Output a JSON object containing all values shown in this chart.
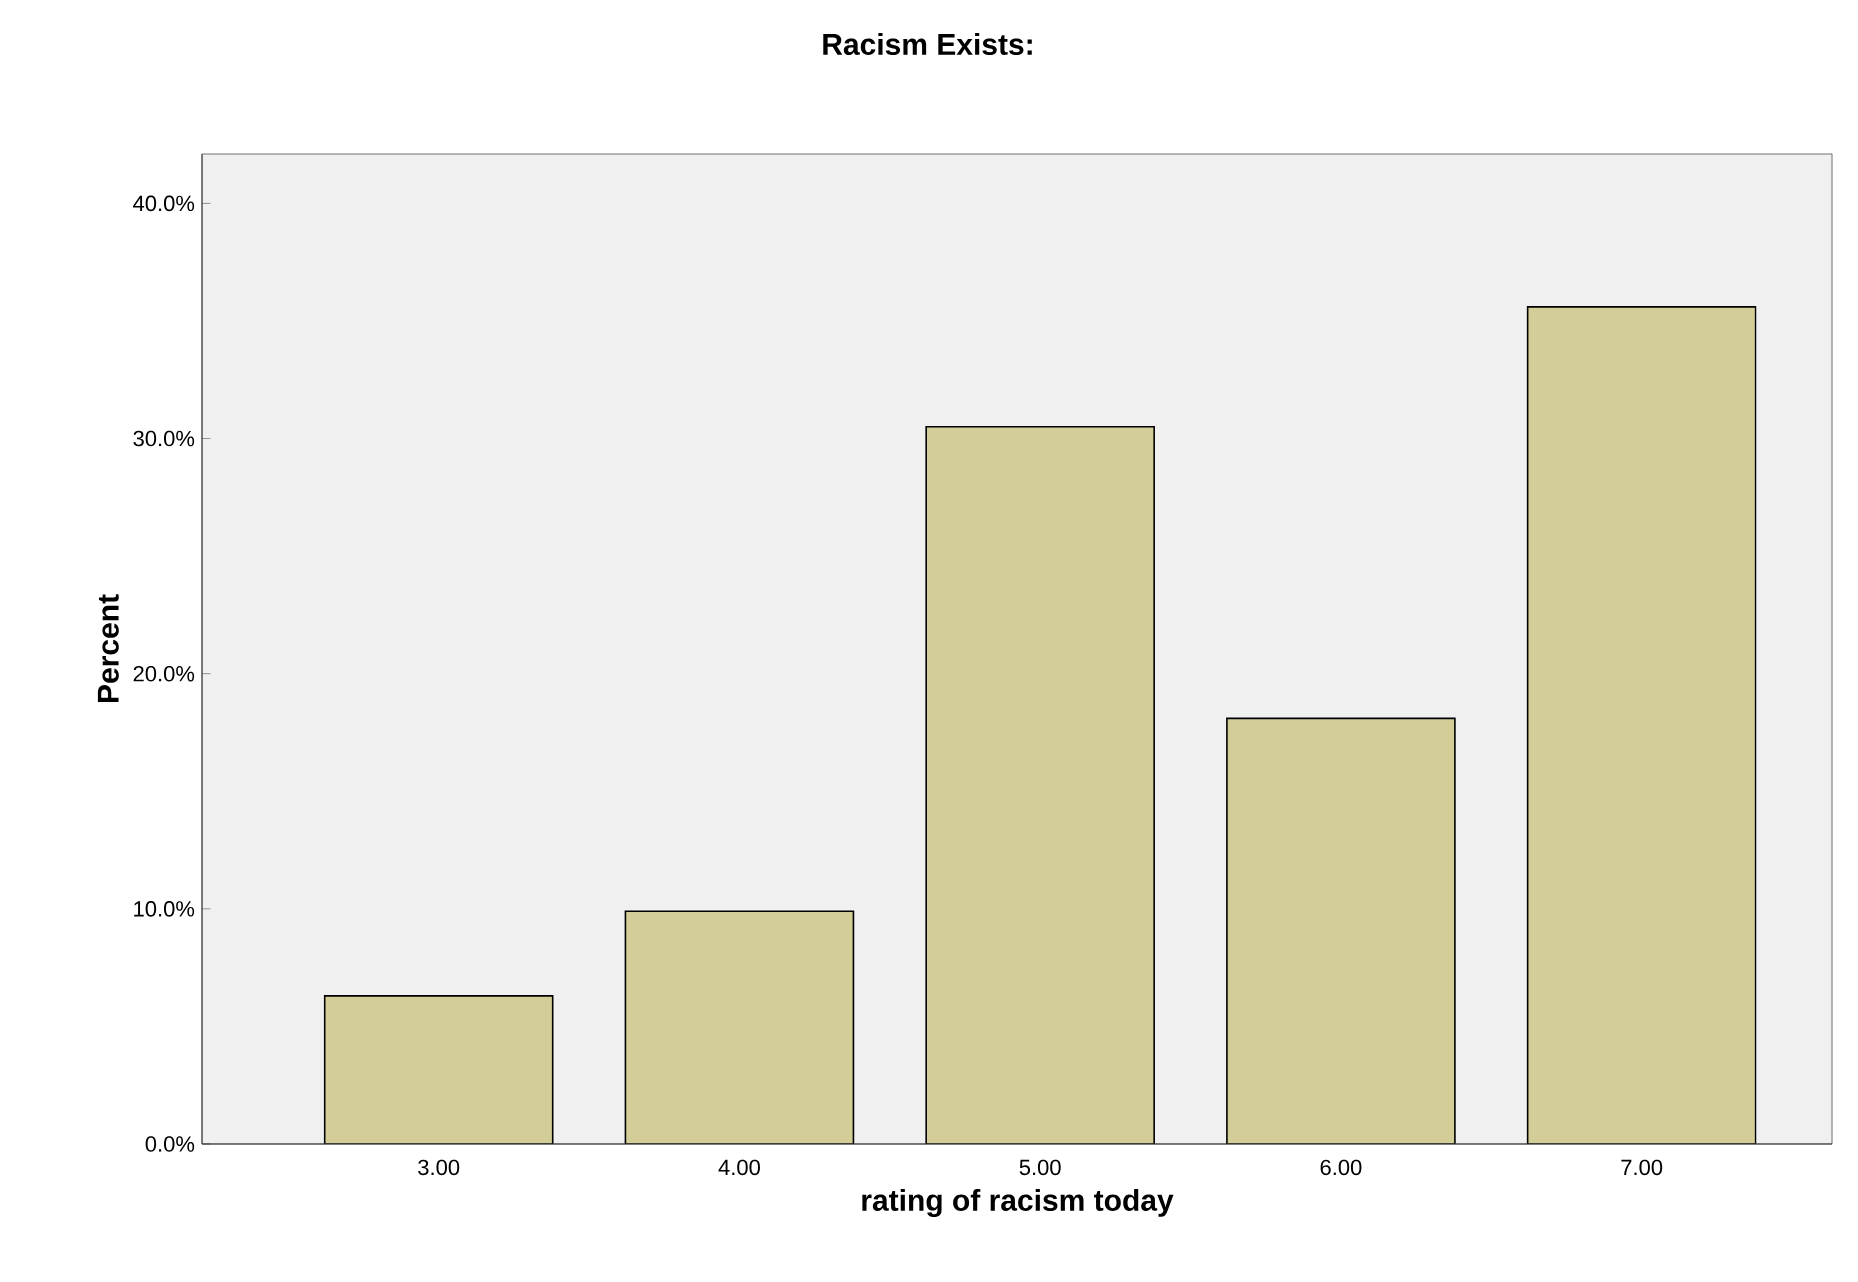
{
  "chart_data": {
    "type": "bar",
    "title": "Racism Exists:",
    "xlabel": "rating of racism today",
    "ylabel": "Percent",
    "categories": [
      "3.00",
      "4.00",
      "5.00",
      "6.00",
      "7.00"
    ],
    "values": [
      6.3,
      9.9,
      30.5,
      18.1,
      35.6
    ],
    "color": "#d3ce97",
    "ylim": [
      0,
      42.1
    ],
    "yticks": [
      {
        "value": 0,
        "label": "0.0%"
      },
      {
        "value": 10,
        "label": "10.0%"
      },
      {
        "value": 20,
        "label": "20.0%"
      },
      {
        "value": 30,
        "label": "30.0%"
      },
      {
        "value": 40,
        "label": "40.0%"
      }
    ],
    "grid": false
  }
}
